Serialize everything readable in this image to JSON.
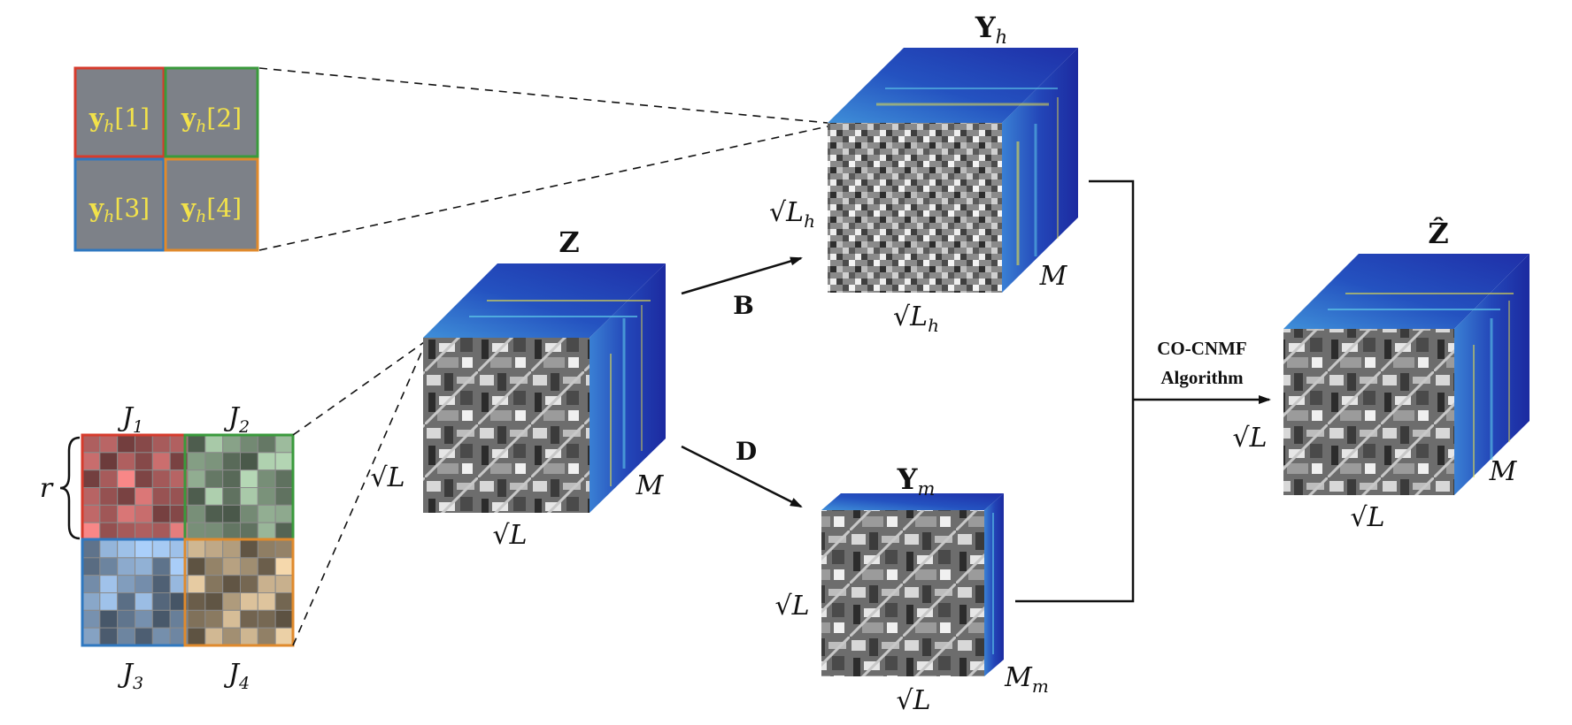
{
  "cube_z": {
    "title": "Z",
    "side_left": "√L",
    "side_bottom": "√L",
    "depth": "M"
  },
  "cube_yh": {
    "title": "Y",
    "title_sub": "h",
    "side_left": "√L",
    "side_left_sub": "h",
    "side_bottom": "√L",
    "side_bottom_sub": "h",
    "depth": "M"
  },
  "cube_ym": {
    "title": "Y",
    "title_sub": "m",
    "side_left": "√L",
    "side_bottom": "√L",
    "depth": "M",
    "depth_sub": "m"
  },
  "cube_zhat": {
    "title": "Ẑ",
    "side_left": "√L",
    "side_bottom": "√L",
    "depth": "M"
  },
  "operators": {
    "b": "B",
    "d": "D"
  },
  "algorithm": {
    "line1": "CO-CNMF",
    "line2": "Algorithm"
  },
  "patch_grid_top": {
    "cells": [
      {
        "base": "y",
        "sub": "h",
        "idx": "[1]",
        "border": "#d63b2c"
      },
      {
        "base": "y",
        "sub": "h",
        "idx": "[2]",
        "border": "#3a9a3c"
      },
      {
        "base": "y",
        "sub": "h",
        "idx": "[3]",
        "border": "#2f78c0"
      },
      {
        "base": "y",
        "sub": "h",
        "idx": "[4]",
        "border": "#e08a2c"
      }
    ]
  },
  "patch_grid_bottom": {
    "labels": [
      {
        "base": "J",
        "sub": "1"
      },
      {
        "base": "J",
        "sub": "2"
      },
      {
        "base": "J",
        "sub": "3"
      },
      {
        "base": "J",
        "sub": "4"
      }
    ],
    "brace_label": "r",
    "borders": [
      "#d63b2c",
      "#3a9a3c",
      "#2f78c0",
      "#e08a2c"
    ]
  },
  "colors": {
    "cube_face": "#2a3fb0",
    "cube_accent": "#5ec8e8",
    "highlight": "#e8e04a",
    "patch_fill": "#7a7f87"
  }
}
